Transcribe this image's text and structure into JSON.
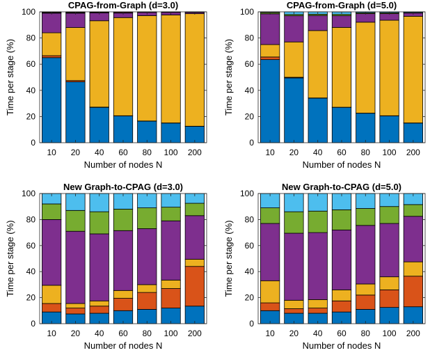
{
  "colors": {
    "stage1": "#0072BD",
    "stage2": "#D95319",
    "stage3": "#EDB120",
    "stage4": "#7E2F8E",
    "stage5": "#77AC30",
    "stage6": "#4DBEEE",
    "stage7": "#A2142F"
  },
  "chart_data": [
    {
      "type": "bar",
      "stacked": true,
      "title": "CPAG-from-Graph (d=3.0)",
      "xlabel": "Number of nodes N",
      "ylabel": "Time per stage (%)",
      "ylim": [
        0,
        100
      ],
      "yticks": [
        0,
        20,
        40,
        60,
        80,
        100
      ],
      "categories": [
        "10",
        "20",
        "40",
        "60",
        "80",
        "100",
        "200"
      ],
      "series": [
        {
          "color": "#0072BD",
          "values": [
            65,
            46.5,
            27,
            20.5,
            16.5,
            15,
            12.5
          ]
        },
        {
          "color": "#D95319",
          "values": [
            1.5,
            1,
            0.2,
            0.1,
            0.1,
            0.1,
            0.1
          ]
        },
        {
          "color": "#EDB120",
          "values": [
            17.5,
            40.5,
            66,
            75,
            80.5,
            82.5,
            86
          ]
        },
        {
          "color": "#7E2F8E",
          "values": [
            15,
            11,
            6,
            3.5,
            2.5,
            2,
            1
          ]
        },
        {
          "color": "#77AC30",
          "values": [
            0.5,
            0.5,
            0.3,
            0.3,
            0.2,
            0.2,
            0.2
          ]
        },
        {
          "color": "#4DBEEE",
          "values": [
            0,
            0,
            0,
            0,
            0,
            0,
            0
          ]
        },
        {
          "color": "#A2142F",
          "values": [
            0.5,
            0.5,
            0.5,
            0.6,
            0.2,
            0.2,
            0.2
          ]
        }
      ]
    },
    {
      "type": "bar",
      "stacked": true,
      "title": "CPAG-from-Graph (d=5.0)",
      "xlabel": "Number of nodes N",
      "ylabel": "Time per stage (%)",
      "ylim": [
        0,
        100
      ],
      "yticks": [
        0,
        20,
        40,
        60,
        80,
        100
      ],
      "categories": [
        "10",
        "20",
        "40",
        "60",
        "80",
        "100",
        "200"
      ],
      "series": [
        {
          "color": "#0072BD",
          "values": [
            63.5,
            49.5,
            34,
            27,
            22.5,
            20.5,
            15
          ]
        },
        {
          "color": "#D95319",
          "values": [
            2,
            0.5,
            0.2,
            0.1,
            0.1,
            0.1,
            0.1
          ]
        },
        {
          "color": "#EDB120",
          "values": [
            9.5,
            27,
            51.5,
            61,
            69.5,
            73,
            81.5
          ]
        },
        {
          "color": "#7E2F8E",
          "values": [
            23.5,
            20,
            11.5,
            9,
            6.5,
            5,
            2.5
          ]
        },
        {
          "color": "#77AC30",
          "values": [
            1,
            1,
            1,
            1,
            0.7,
            0.7,
            0.3
          ]
        },
        {
          "color": "#4DBEEE",
          "values": [
            0.5,
            2,
            1.8,
            1.8,
            0.7,
            0.7,
            0.6
          ]
        },
        {
          "color": "#A2142F",
          "values": [
            0,
            0,
            0,
            0,
            0,
            0,
            0
          ]
        }
      ]
    },
    {
      "type": "bar",
      "stacked": true,
      "title": "New Graph-to-CPAG (d=3.0)",
      "xlabel": "Number of nodes N",
      "ylabel": "Time per stage (%)",
      "ylim": [
        0,
        100
      ],
      "yticks": [
        0,
        20,
        40,
        60,
        80,
        100
      ],
      "categories": [
        "10",
        "20",
        "40",
        "60",
        "80",
        "100",
        "200"
      ],
      "series": [
        {
          "color": "#0072BD",
          "values": [
            9,
            7.5,
            8,
            10,
            11,
            12,
            13.5
          ]
        },
        {
          "color": "#D95319",
          "values": [
            6.5,
            4.5,
            5.5,
            9.5,
            13,
            15,
            30.5
          ]
        },
        {
          "color": "#EDB120",
          "values": [
            14,
            3.5,
            4,
            6,
            6,
            6.5,
            5.5
          ]
        },
        {
          "color": "#7E2F8E",
          "values": [
            50.5,
            55.5,
            51.5,
            46,
            43,
            45.5,
            33.5
          ]
        },
        {
          "color": "#77AC30",
          "values": [
            12,
            16,
            17,
            16.5,
            16,
            10.5,
            9.5
          ]
        },
        {
          "color": "#4DBEEE",
          "values": [
            8,
            13,
            14,
            12,
            11,
            10.5,
            7.5
          ]
        },
        {
          "color": "#A2142F",
          "values": [
            0,
            0,
            0,
            0,
            0,
            0,
            0
          ]
        }
      ]
    },
    {
      "type": "bar",
      "stacked": true,
      "title": "New Graph-to-CPAG (d=5.0)",
      "xlabel": "Number of nodes N",
      "ylabel": "Time per stage (%)",
      "ylim": [
        0,
        100
      ],
      "yticks": [
        0,
        20,
        40,
        60,
        80,
        100
      ],
      "categories": [
        "10",
        "20",
        "40",
        "60",
        "80",
        "100",
        "200"
      ],
      "series": [
        {
          "color": "#0072BD",
          "values": [
            10,
            8,
            8,
            9,
            11,
            12.5,
            13
          ]
        },
        {
          "color": "#D95319",
          "values": [
            6,
            3.5,
            4,
            8.5,
            11,
            13.5,
            23.5
          ]
        },
        {
          "color": "#EDB120",
          "values": [
            17,
            6.5,
            6.5,
            8.5,
            8.5,
            10,
            11
          ]
        },
        {
          "color": "#7E2F8E",
          "values": [
            44,
            51.5,
            51.5,
            46,
            45,
            41,
            35
          ]
        },
        {
          "color": "#77AC30",
          "values": [
            12,
            16.5,
            16.5,
            15.5,
            13,
            13,
            9
          ]
        },
        {
          "color": "#4DBEEE",
          "values": [
            11,
            14,
            13.5,
            12.5,
            11.5,
            10,
            8.5
          ]
        },
        {
          "color": "#A2142F",
          "values": [
            0,
            0,
            0,
            0,
            0,
            0,
            0
          ]
        }
      ]
    }
  ]
}
